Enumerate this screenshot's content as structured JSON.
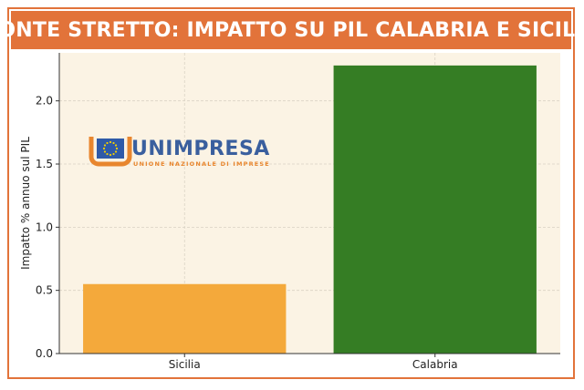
{
  "chart_data": {
    "type": "bar",
    "title": "PONTE STRETTO: IMPATTO SU PIL CALABRIA E SICILIA",
    "categories": [
      "Sicilia",
      "Calabria"
    ],
    "values": [
      0.55,
      2.28
    ],
    "colors": [
      "#f4a93b",
      "#357d24"
    ],
    "xlabel": "",
    "ylabel": "Impatto % annuo sul PIL",
    "ylim": [
      0,
      2.38
    ],
    "yticks": [
      0.0,
      0.5,
      1.0,
      1.5,
      2.0
    ],
    "ytick_labels": [
      "0.0",
      "0.5",
      "1.0",
      "1.5",
      "2.0"
    ],
    "grid": true
  },
  "theme": {
    "banner_color": "#e2733a",
    "plot_background": "#fbf3e4"
  },
  "logo": {
    "name": "UNIMPRESA",
    "tagline": "UNIONE NAZIONALE DI IMPRESE",
    "icon": "eu-stars-icon"
  }
}
